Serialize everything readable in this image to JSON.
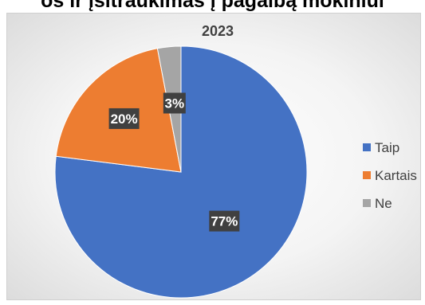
{
  "page": {
    "caption": "os ir įsitraukimas į pagalbą mokiniui"
  },
  "chart_data": {
    "type": "pie",
    "title": "2023",
    "categories": [
      "Taip",
      "Kartais",
      "Ne"
    ],
    "values": [
      77,
      20,
      3
    ],
    "data_labels": [
      "77%",
      "20%",
      "3%"
    ],
    "colors": [
      "#4472c4",
      "#ed7d31",
      "#a5a5a5"
    ],
    "legend_position": "right"
  }
}
